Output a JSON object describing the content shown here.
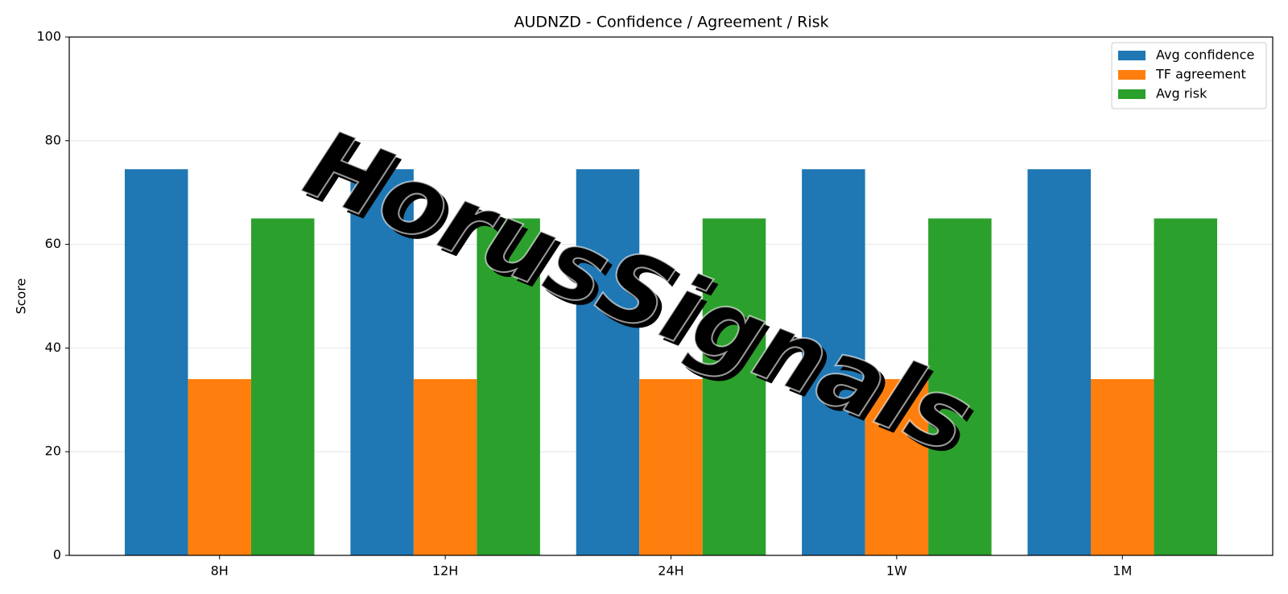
{
  "chart_data": {
    "type": "bar",
    "title": "AUDNZD - Confidence / Agreement / Risk",
    "y_label": "Score",
    "categories": [
      "8H",
      "12H",
      "24H",
      "1W",
      "1M"
    ],
    "series": [
      {
        "name": "Avg confidence",
        "color": "#1f77b4",
        "values": [
          74.5,
          74.5,
          74.5,
          74.5,
          74.5
        ]
      },
      {
        "name": "TF agreement",
        "color": "#ff7f0e",
        "values": [
          34,
          34,
          34,
          34,
          34
        ]
      },
      {
        "name": "Avg risk",
        "color": "#2ca02c",
        "values": [
          65,
          65,
          65,
          65,
          65
        ]
      }
    ],
    "ylim": [
      0,
      100
    ],
    "yticks": [
      0,
      20,
      40,
      60,
      80,
      100
    ],
    "grid": true,
    "legend": "upper-right",
    "watermark": "HorusSignals"
  }
}
